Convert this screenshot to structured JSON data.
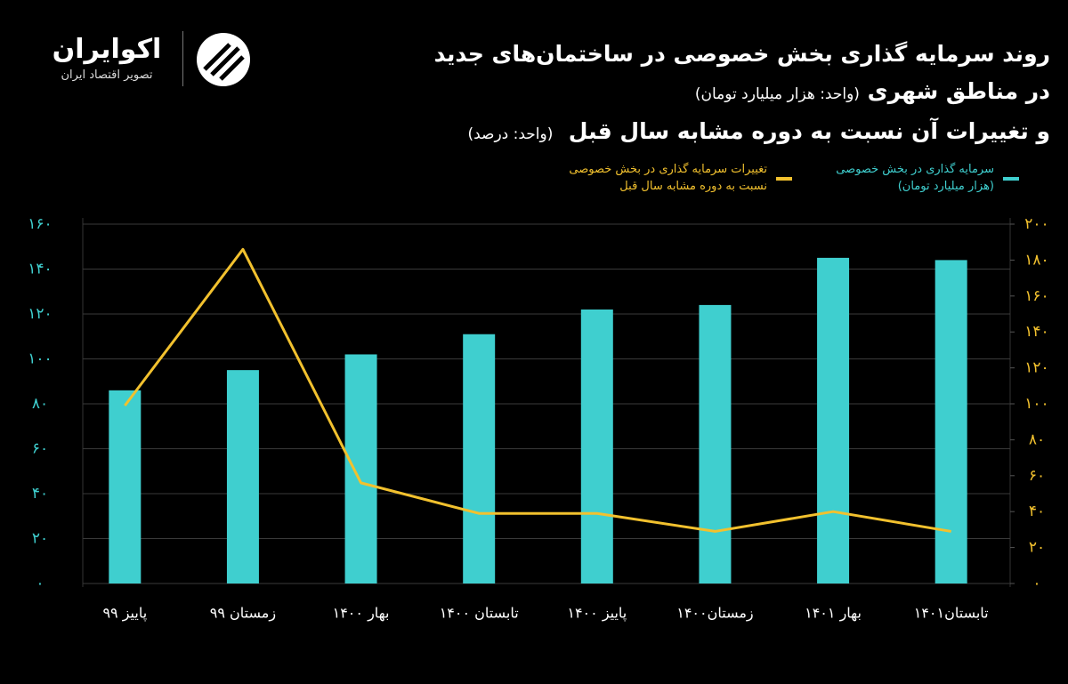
{
  "brand": {
    "name": "اکوایران",
    "tagline": "تصویر اقتصاد ایران"
  },
  "chart_data": {
    "type": "bar",
    "title": "روند سرمایه گذاری  بخش خصوصی در ساختمان‌های جدید",
    "subtitle": "در مناطق شهری",
    "subtitle_unit": "(واحد: هزار میلیارد تومان)",
    "subtitle2": "و تغییرات آن نسبت به دوره مشابه  سال قبل",
    "subtitle2_unit": "(واحد: درصد)",
    "categories": [
      "پاییز ۹۹",
      "زمستان ۹۹",
      "بهار ۱۴۰۰",
      "تابستان ۱۴۰۰",
      "پاییز ۱۴۰۰",
      "زمستان۱۴۰۰",
      "بهار ۱۴۰۱",
      "تابستان۱۴۰۱"
    ],
    "series": [
      {
        "name": "سرمایه گذاری در بخش خصوصی\n(هزار میلیارد تومان)",
        "type": "bar",
        "color": "#3fcfcf",
        "values": [
          86,
          95,
          102,
          111,
          122,
          124,
          145,
          144
        ]
      },
      {
        "name": "تغییرات سرمایه گذاری در بخش خصوصی\nنسبت به دوره مشابه سال قبل",
        "type": "line",
        "axis": "y2",
        "color": "#f2c12e",
        "values": [
          99,
          186,
          56,
          39,
          39,
          29,
          40,
          29
        ]
      }
    ],
    "ylim": [
      0,
      160
    ],
    "yticks": [
      {
        "value": 0,
        "label": "۰"
      },
      {
        "value": 20,
        "label": "۲۰"
      },
      {
        "value": 40,
        "label": "۴۰"
      },
      {
        "value": 60,
        "label": "۶۰"
      },
      {
        "value": 80,
        "label": "۸۰"
      },
      {
        "value": 100,
        "label": "۱۰۰"
      },
      {
        "value": 120,
        "label": "۱۲۰"
      },
      {
        "value": 140,
        "label": "۱۴۰"
      },
      {
        "value": 160,
        "label": "۱۶۰"
      }
    ],
    "y2lim": [
      0,
      200
    ],
    "y2ticks": [
      {
        "value": 0,
        "label": "۰"
      },
      {
        "value": 20,
        "label": "۲۰"
      },
      {
        "value": 40,
        "label": "۴۰"
      },
      {
        "value": 60,
        "label": "۶۰"
      },
      {
        "value": 80,
        "label": "۸۰"
      },
      {
        "value": 100,
        "label": "۱۰۰"
      },
      {
        "value": 120,
        "label": "۱۲۰"
      },
      {
        "value": 140,
        "label": "۱۴۰"
      },
      {
        "value": 160,
        "label": "۱۶۰"
      },
      {
        "value": 180,
        "label": "۱۸۰"
      },
      {
        "value": 200,
        "label": "۲۰۰"
      }
    ],
    "grid": true
  }
}
